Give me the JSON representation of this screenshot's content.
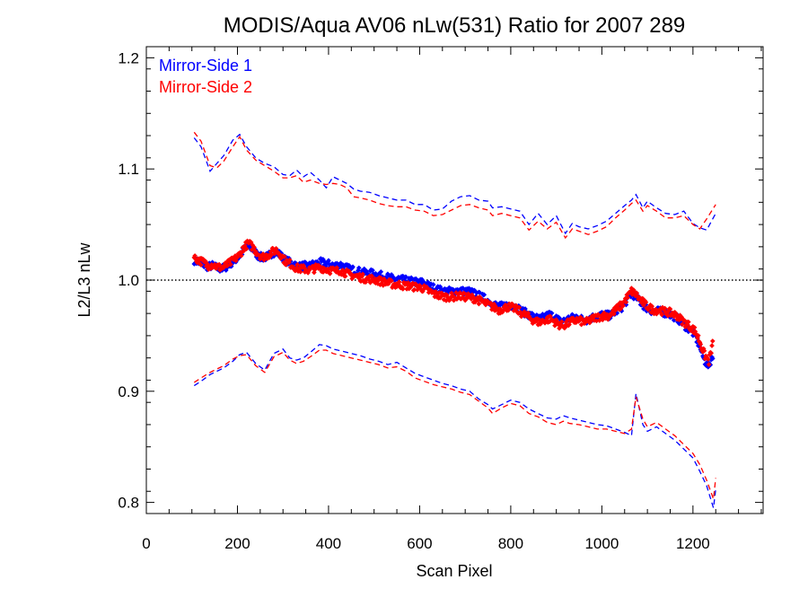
{
  "chart_data": {
    "type": "scatter",
    "title": "MODIS/Aqua AV06 nLw(531) Ratio for 2007 289",
    "xlabel": "Scan Pixel",
    "ylabel": "L2/L3 nLw",
    "xlim": [
      0,
      1354
    ],
    "ylim": [
      0.79,
      1.21
    ],
    "xticks": [
      0,
      200,
      400,
      600,
      800,
      1000,
      1200
    ],
    "xtick_labels": [
      "0",
      "200",
      "400",
      "600",
      "800",
      "1000",
      "1200"
    ],
    "yticks": [
      0.8,
      0.9,
      1.0,
      1.1,
      1.2
    ],
    "ytick_labels": [
      "0.8",
      "0.9",
      "1.0",
      "1.1",
      "1.2"
    ],
    "reference_line": 1.0,
    "legend_position": "top-left",
    "series": [
      {
        "name": "Mirror-Side 1",
        "color": "#0000ff",
        "mean": {
          "x": [
            105,
            115,
            125,
            135,
            145,
            155,
            165,
            175,
            185,
            195,
            205,
            215,
            225,
            235,
            245,
            255,
            265,
            275,
            285,
            295,
            305,
            315,
            325,
            335,
            345,
            355,
            365,
            375,
            385,
            395,
            405,
            415,
            425,
            435,
            445,
            455,
            465,
            475,
            485,
            495,
            505,
            515,
            525,
            535,
            545,
            555,
            565,
            575,
            585,
            595,
            605,
            615,
            625,
            635,
            645,
            655,
            665,
            675,
            685,
            695,
            705,
            715,
            725,
            735,
            745,
            755,
            765,
            775,
            785,
            795,
            805,
            815,
            825,
            835,
            845,
            855,
            865,
            875,
            885,
            895,
            905,
            915,
            925,
            935,
            945,
            955,
            965,
            975,
            985,
            995,
            1005,
            1015,
            1025,
            1035,
            1045,
            1055,
            1065,
            1075,
            1085,
            1095,
            1105,
            1115,
            1125,
            1135,
            1145,
            1155,
            1165,
            1175,
            1185,
            1195,
            1205,
            1215,
            1225,
            1235,
            1245
          ],
          "y": [
            1.018,
            1.016,
            1.014,
            1.012,
            1.013,
            1.011,
            1.01,
            1.012,
            1.015,
            1.018,
            1.022,
            1.028,
            1.031,
            1.027,
            1.022,
            1.02,
            1.021,
            1.024,
            1.026,
            1.022,
            1.018,
            1.016,
            1.014,
            1.012,
            1.013,
            1.012,
            1.014,
            1.015,
            1.016,
            1.015,
            1.014,
            1.013,
            1.014,
            1.012,
            1.01,
            1.009,
            1.008,
            1.007,
            1.006,
            1.006,
            1.005,
            1.004,
            1.003,
            1.002,
            1.001,
            1.001,
            1.0,
            0.999,
            0.999,
            0.998,
            0.998,
            0.996,
            0.994,
            0.992,
            0.991,
            0.99,
            0.99,
            0.99,
            0.991,
            0.99,
            0.99,
            0.989,
            0.987,
            0.985,
            0.983,
            0.98,
            0.978,
            0.976,
            0.977,
            0.978,
            0.977,
            0.975,
            0.972,
            0.97,
            0.968,
            0.966,
            0.965,
            0.967,
            0.969,
            0.967,
            0.964,
            0.963,
            0.965,
            0.966,
            0.967,
            0.965,
            0.964,
            0.966,
            0.967,
            0.968,
            0.969,
            0.968,
            0.97,
            0.973,
            0.976,
            0.982,
            0.988,
            0.985,
            0.98,
            0.976,
            0.973,
            0.972,
            0.972,
            0.971,
            0.97,
            0.968,
            0.966,
            0.962,
            0.958,
            0.955,
            0.95,
            0.94,
            0.928,
            0.922,
            0.935
          ]
        },
        "upper": {
          "x": [
            105,
            120,
            140,
            155,
            170,
            190,
            205,
            220,
            240,
            260,
            280,
            300,
            315,
            330,
            345,
            360,
            380,
            395,
            410,
            425,
            440,
            455,
            470,
            490,
            510,
            530,
            550,
            570,
            590,
            610,
            630,
            650,
            670,
            690,
            710,
            730,
            750,
            760,
            780,
            800,
            820,
            840,
            860,
            880,
            900,
            920,
            935,
            950,
            970,
            990,
            1010,
            1030,
            1050,
            1065,
            1075,
            1090,
            1100,
            1120,
            1140,
            1160,
            1180,
            1200,
            1215,
            1230,
            1250
          ],
          "y": [
            1.128,
            1.12,
            1.098,
            1.105,
            1.112,
            1.126,
            1.131,
            1.12,
            1.11,
            1.105,
            1.102,
            1.095,
            1.094,
            1.099,
            1.093,
            1.097,
            1.09,
            1.083,
            1.093,
            1.09,
            1.087,
            1.082,
            1.08,
            1.079,
            1.076,
            1.074,
            1.072,
            1.072,
            1.068,
            1.068,
            1.063,
            1.064,
            1.071,
            1.075,
            1.076,
            1.072,
            1.071,
            1.065,
            1.066,
            1.064,
            1.062,
            1.05,
            1.06,
            1.05,
            1.058,
            1.042,
            1.051,
            1.048,
            1.046,
            1.049,
            1.053,
            1.06,
            1.067,
            1.072,
            1.077,
            1.065,
            1.071,
            1.065,
            1.06,
            1.059,
            1.062,
            1.051,
            1.047,
            1.045,
            1.06
          ]
        },
        "lower": {
          "x": [
            105,
            120,
            140,
            155,
            170,
            190,
            205,
            220,
            240,
            260,
            280,
            300,
            315,
            330,
            345,
            360,
            380,
            395,
            410,
            430,
            450,
            470,
            490,
            510,
            530,
            550,
            570,
            590,
            610,
            630,
            650,
            670,
            690,
            710,
            730,
            750,
            760,
            780,
            800,
            820,
            840,
            860,
            880,
            900,
            915,
            930,
            950,
            970,
            990,
            1010,
            1030,
            1050,
            1065,
            1075,
            1090,
            1100,
            1120,
            1140,
            1160,
            1180,
            1200,
            1215,
            1230,
            1245,
            1250
          ],
          "y": [
            0.905,
            0.909,
            0.915,
            0.918,
            0.921,
            0.927,
            0.933,
            0.935,
            0.925,
            0.919,
            0.934,
            0.938,
            0.93,
            0.928,
            0.93,
            0.935,
            0.942,
            0.941,
            0.938,
            0.936,
            0.934,
            0.932,
            0.929,
            0.927,
            0.924,
            0.926,
            0.921,
            0.916,
            0.913,
            0.91,
            0.907,
            0.905,
            0.902,
            0.9,
            0.893,
            0.888,
            0.884,
            0.888,
            0.892,
            0.89,
            0.884,
            0.88,
            0.876,
            0.875,
            0.878,
            0.876,
            0.874,
            0.872,
            0.87,
            0.869,
            0.866,
            0.863,
            0.86,
            0.898,
            0.87,
            0.864,
            0.868,
            0.862,
            0.856,
            0.848,
            0.84,
            0.828,
            0.815,
            0.795,
            0.812
          ]
        }
      },
      {
        "name": "Mirror-Side 2",
        "color": "#ff0000",
        "mean": {
          "x": [
            105,
            115,
            125,
            135,
            145,
            155,
            165,
            175,
            185,
            195,
            205,
            215,
            225,
            235,
            245,
            255,
            265,
            275,
            285,
            295,
            305,
            315,
            325,
            335,
            345,
            355,
            365,
            375,
            385,
            395,
            405,
            415,
            425,
            435,
            445,
            455,
            465,
            475,
            485,
            495,
            505,
            515,
            525,
            535,
            545,
            555,
            565,
            575,
            585,
            595,
            605,
            615,
            625,
            635,
            645,
            655,
            665,
            675,
            685,
            695,
            705,
            715,
            725,
            735,
            745,
            755,
            765,
            775,
            785,
            795,
            805,
            815,
            825,
            835,
            845,
            855,
            865,
            875,
            885,
            895,
            905,
            915,
            925,
            935,
            945,
            955,
            965,
            975,
            985,
            995,
            1005,
            1015,
            1025,
            1035,
            1045,
            1055,
            1065,
            1075,
            1085,
            1095,
            1105,
            1115,
            1125,
            1135,
            1145,
            1155,
            1165,
            1175,
            1185,
            1195,
            1205,
            1215,
            1225,
            1235,
            1245
          ],
          "y": [
            1.02,
            1.018,
            1.016,
            1.013,
            1.014,
            1.012,
            1.011,
            1.013,
            1.016,
            1.019,
            1.023,
            1.03,
            1.033,
            1.029,
            1.024,
            1.021,
            1.022,
            1.025,
            1.027,
            1.023,
            1.017,
            1.015,
            1.012,
            1.01,
            1.01,
            1.009,
            1.01,
            1.011,
            1.011,
            1.01,
            1.009,
            1.008,
            1.009,
            1.007,
            1.005,
            1.004,
            1.003,
            1.002,
            1.001,
            1.001,
            1.0,
            0.999,
            0.998,
            0.997,
            0.996,
            0.996,
            0.995,
            0.995,
            0.994,
            0.994,
            0.993,
            0.991,
            0.989,
            0.987,
            0.986,
            0.985,
            0.985,
            0.985,
            0.986,
            0.985,
            0.985,
            0.984,
            0.983,
            0.981,
            0.979,
            0.977,
            0.975,
            0.973,
            0.975,
            0.976,
            0.975,
            0.973,
            0.97,
            0.968,
            0.965,
            0.963,
            0.962,
            0.964,
            0.965,
            0.963,
            0.96,
            0.959,
            0.961,
            0.963,
            0.964,
            0.963,
            0.962,
            0.964,
            0.966,
            0.967,
            0.968,
            0.968,
            0.971,
            0.975,
            0.978,
            0.984,
            0.99,
            0.987,
            0.982,
            0.978,
            0.975,
            0.973,
            0.973,
            0.972,
            0.971,
            0.97,
            0.968,
            0.964,
            0.961,
            0.958,
            0.954,
            0.945,
            0.933,
            0.927,
            0.945
          ]
        },
        "upper": {
          "x": [
            105,
            120,
            140,
            155,
            170,
            190,
            205,
            220,
            240,
            260,
            280,
            300,
            315,
            330,
            345,
            360,
            380,
            395,
            410,
            425,
            440,
            455,
            470,
            490,
            510,
            530,
            550,
            570,
            590,
            610,
            630,
            650,
            670,
            690,
            710,
            730,
            750,
            760,
            780,
            800,
            820,
            840,
            860,
            880,
            900,
            920,
            935,
            950,
            970,
            990,
            1010,
            1030,
            1050,
            1065,
            1075,
            1090,
            1100,
            1120,
            1140,
            1160,
            1180,
            1200,
            1215,
            1230,
            1250
          ],
          "y": [
            1.133,
            1.125,
            1.103,
            1.101,
            1.107,
            1.12,
            1.129,
            1.117,
            1.108,
            1.103,
            1.098,
            1.092,
            1.092,
            1.094,
            1.088,
            1.09,
            1.087,
            1.086,
            1.087,
            1.086,
            1.083,
            1.075,
            1.074,
            1.072,
            1.069,
            1.067,
            1.066,
            1.066,
            1.063,
            1.062,
            1.058,
            1.059,
            1.063,
            1.067,
            1.068,
            1.065,
            1.063,
            1.058,
            1.06,
            1.058,
            1.056,
            1.045,
            1.053,
            1.046,
            1.052,
            1.038,
            1.046,
            1.044,
            1.041,
            1.044,
            1.048,
            1.056,
            1.063,
            1.069,
            1.072,
            1.062,
            1.067,
            1.062,
            1.056,
            1.056,
            1.058,
            1.05,
            1.046,
            1.055,
            1.068
          ]
        },
        "lower": {
          "x": [
            105,
            120,
            140,
            155,
            170,
            190,
            205,
            220,
            240,
            260,
            280,
            300,
            315,
            330,
            345,
            360,
            380,
            395,
            410,
            430,
            450,
            470,
            490,
            510,
            530,
            550,
            570,
            590,
            610,
            630,
            650,
            670,
            690,
            710,
            730,
            750,
            760,
            780,
            800,
            820,
            840,
            860,
            880,
            900,
            915,
            930,
            950,
            970,
            990,
            1010,
            1030,
            1050,
            1065,
            1075,
            1090,
            1100,
            1120,
            1140,
            1160,
            1180,
            1200,
            1215,
            1230,
            1245,
            1250
          ],
          "y": [
            0.908,
            0.912,
            0.917,
            0.92,
            0.923,
            0.929,
            0.932,
            0.933,
            0.923,
            0.917,
            0.931,
            0.935,
            0.928,
            0.925,
            0.927,
            0.931,
            0.937,
            0.937,
            0.934,
            0.932,
            0.93,
            0.928,
            0.926,
            0.924,
            0.921,
            0.922,
            0.918,
            0.912,
            0.909,
            0.906,
            0.904,
            0.902,
            0.899,
            0.897,
            0.891,
            0.885,
            0.88,
            0.885,
            0.889,
            0.887,
            0.88,
            0.877,
            0.872,
            0.87,
            0.873,
            0.871,
            0.87,
            0.868,
            0.866,
            0.866,
            0.864,
            0.862,
            0.866,
            0.895,
            0.875,
            0.868,
            0.872,
            0.866,
            0.86,
            0.852,
            0.844,
            0.834,
            0.82,
            0.803,
            0.822
          ]
        }
      }
    ]
  }
}
